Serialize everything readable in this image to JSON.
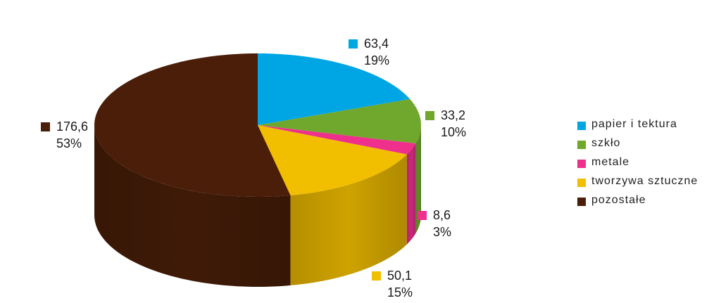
{
  "chart_data": {
    "type": "pie",
    "style": "3d",
    "title": "",
    "legend_position": "right",
    "slices": [
      {
        "label": "papier i tektura",
        "value": 63.4,
        "value_text": "63,4",
        "percent_text": "19%",
        "color": "#00A6E4"
      },
      {
        "label": "szkło",
        "value": 33.2,
        "value_text": "33,2",
        "percent_text": "10%",
        "color": "#6FA82C"
      },
      {
        "label": "metale",
        "value": 8.6,
        "value_text": "8,6",
        "percent_text": "3%",
        "color": "#EE2F8C"
      },
      {
        "label": "tworzywa sztuczne",
        "value": 50.1,
        "value_text": "50,1",
        "percent_text": "15%",
        "color": "#F2BE00"
      },
      {
        "label": "pozostałe",
        "value": 176.6,
        "value_text": "176,6",
        "percent_text": "53%",
        "color": "#4A1E08"
      }
    ]
  }
}
